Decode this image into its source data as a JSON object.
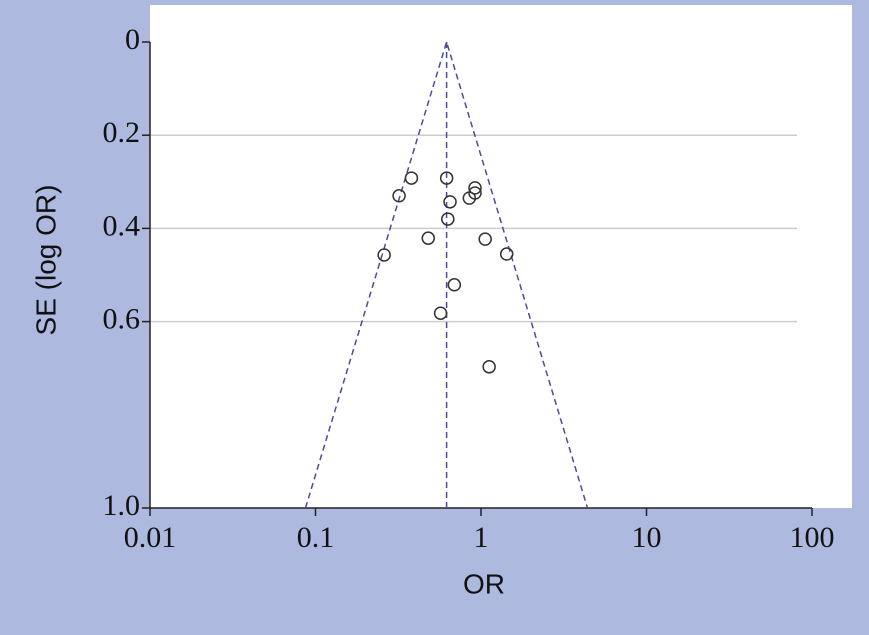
{
  "chart_data": {
    "type": "scatter",
    "x_label": "OR",
    "y_label": "SE (log OR)",
    "xscale": "log",
    "y_reversed": true,
    "grid": true,
    "color": "#333333",
    "line_color": "#4b4b9b",
    "xlim": [
      0.01,
      100
    ],
    "ylim": [
      0,
      1
    ],
    "xticks": [
      0.01,
      0.1,
      1,
      10,
      100
    ],
    "yticks": [
      0,
      0.2,
      0.4,
      0.6,
      {
        "value": 1,
        "label": "1.0"
      }
    ],
    "x": [
      0.38,
      0.62,
      0.32,
      0.92,
      0.92,
      0.85,
      0.65,
      0.63,
      0.48,
      1.06,
      1.43,
      0.26,
      0.69,
      0.57,
      1.12
    ],
    "values": [
      0.292,
      0.292,
      0.33,
      0.313,
      0.324,
      0.335,
      0.343,
      0.38,
      0.421,
      0.423,
      0.455,
      0.457,
      0.521,
      0.582,
      0.697
    ],
    "lines": [
      {
        "x": [
          0.087,
          0.62,
          4.4
        ],
        "values": [
          1,
          0,
          1
        ]
      },
      {
        "x": [
          0.62,
          0.62
        ],
        "values": [
          0,
          1
        ]
      }
    ]
  }
}
